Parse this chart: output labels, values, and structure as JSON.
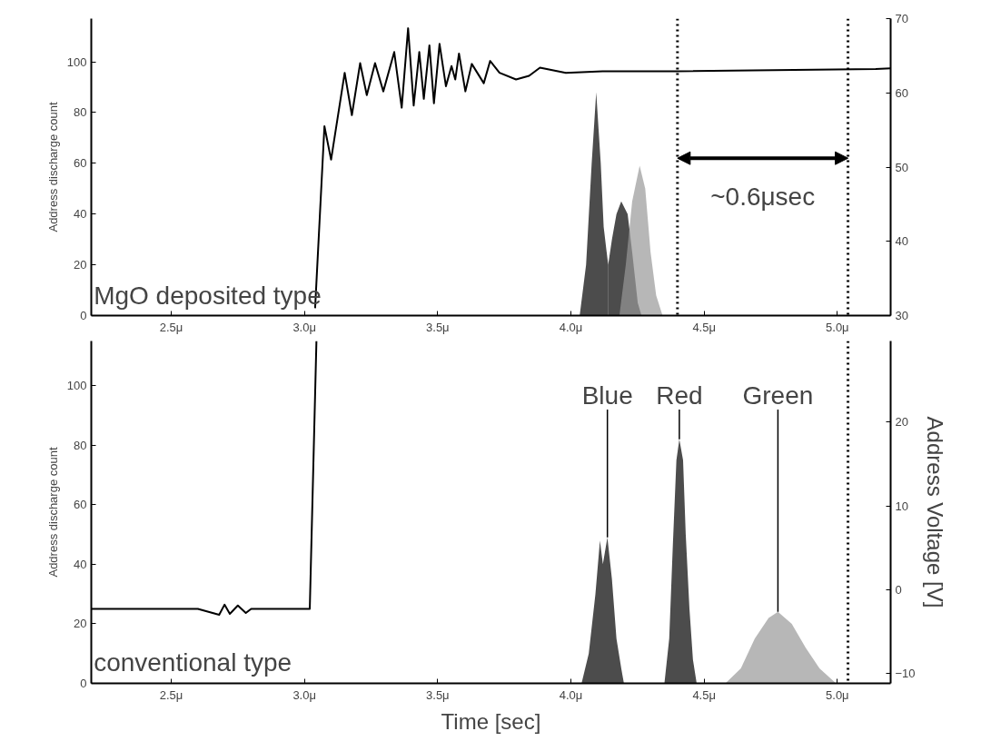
{
  "chart_data": [
    {
      "type": "area",
      "xlim": [
        2.2,
        5.2
      ],
      "xticks": [
        {
          "value": 2.5,
          "label": "2.5μ"
        },
        {
          "value": 3.0,
          "label": "3.0μ"
        },
        {
          "value": 3.5,
          "label": "3.5μ"
        },
        {
          "value": 4.0,
          "label": "4.0μ"
        },
        {
          "value": 4.5,
          "label": "4.5μ"
        },
        {
          "value": 5.0,
          "label": "5.0μ"
        }
      ],
      "ylim": [
        0,
        117
      ],
      "yticks": [
        0,
        20,
        40,
        60,
        80,
        100
      ],
      "y2lim": [
        30,
        70
      ],
      "y2ticks": [
        30,
        40,
        50,
        60,
        70
      ],
      "ylabel": "Address discharge count",
      "grid": false,
      "series": [
        {
          "type": "line",
          "axis": "y2",
          "color": "#000000",
          "x": [
            3.04,
            3.075,
            3.1,
            3.151,
            3.178,
            3.209,
            3.234,
            3.265,
            3.296,
            3.337,
            3.365,
            3.389,
            3.41,
            3.431,
            3.448,
            3.469,
            3.486,
            3.507,
            3.531,
            3.552,
            3.566,
            3.58,
            3.604,
            3.628,
            3.673,
            3.697,
            3.732,
            3.794,
            3.843,
            3.884,
            3.981,
            4.119,
            4.396,
            5.144,
            5.2
          ],
          "values": [
            31,
            55.5,
            51,
            62.7,
            57,
            64,
            59.7,
            64,
            60.2,
            65.5,
            58,
            68.7,
            58.3,
            65.5,
            59.2,
            66.4,
            58.6,
            66.6,
            60.9,
            63.6,
            61.8,
            65.3,
            60.2,
            63.9,
            61.3,
            64.3,
            62.7,
            61.8,
            62.3,
            63.4,
            62.7,
            62.9,
            62.9,
            63.2,
            63.3
          ]
        },
        {
          "color": "#000000",
          "x": [
            4.033,
            4.057,
            4.078,
            4.095,
            4.112,
            4.123,
            4.133,
            4.14
          ],
          "values": [
            0,
            20,
            60,
            88,
            60,
            35,
            26,
            20
          ]
        },
        {
          "color": "#000000",
          "x": [
            4.14,
            4.154,
            4.171,
            4.189,
            4.213,
            4.23,
            4.251,
            4.265
          ],
          "values": [
            20,
            30,
            40,
            45,
            40,
            25,
            5,
            0
          ]
        },
        {
          "color": "#999999",
          "x": [
            4.182,
            4.206,
            4.23,
            4.258,
            4.279,
            4.299,
            4.32,
            4.344
          ],
          "values": [
            0,
            20,
            45,
            59,
            50,
            25,
            8,
            0
          ]
        }
      ],
      "ref_lines": [
        {
          "axis": "x",
          "value": 4.4,
          "line_style": "dotted",
          "color": "#000000"
        },
        {
          "axis": "x",
          "value": 5.04,
          "line_style": "dotted",
          "color": "#000000"
        }
      ],
      "annotations": [
        "MgO deposited type",
        "~0.6μsec"
      ]
    },
    {
      "type": "area",
      "xlim": [
        2.2,
        5.2
      ],
      "xticks": [
        {
          "value": 2.5,
          "label": "2.5μ"
        },
        {
          "value": 3.0,
          "label": "3.0μ"
        },
        {
          "value": 3.5,
          "label": "3.5μ"
        },
        {
          "value": 4.0,
          "label": "4.0μ"
        },
        {
          "value": 4.5,
          "label": "4.5μ"
        },
        {
          "value": 5.0,
          "label": "5.0μ"
        }
      ],
      "ylim": [
        0,
        115
      ],
      "yticks": [
        0,
        20,
        40,
        60,
        80,
        100
      ],
      "y2lim": [
        -11.2,
        29.7
      ],
      "y2ticks": [
        -10,
        0,
        10,
        20
      ],
      "ylabel": "Address discharge count",
      "xlabel": "Time [sec]",
      "y2label": "Address Voltage [V]",
      "grid": false,
      "series": [
        {
          "type": "line",
          "axis": "y2",
          "color": "#000000",
          "x": [
            2.2,
            2.4,
            2.6,
            2.68,
            2.7,
            2.72,
            2.75,
            2.78,
            2.8,
            2.9,
            3.0,
            3.02,
            3.045
          ],
          "values": [
            -2.3,
            -2.3,
            -2.3,
            -3.0,
            -1.8,
            -2.9,
            -1.9,
            -2.8,
            -2.3,
            -2.3,
            -2.3,
            -2.3,
            29.7
          ]
        },
        {
          "name": "Blue",
          "color": "#000000",
          "x": [
            4.04,
            4.067,
            4.092,
            4.109,
            4.12,
            4.137,
            4.154,
            4.171,
            4.189,
            4.199
          ],
          "values": [
            0,
            10,
            30,
            48,
            40,
            49,
            35,
            15,
            5,
            0
          ]
        },
        {
          "name": "Red",
          "color": "#000000",
          "x": [
            4.351,
            4.369,
            4.382,
            4.396,
            4.407,
            4.421,
            4.431,
            4.445,
            4.458,
            4.472
          ],
          "values": [
            0,
            15,
            45,
            75,
            82,
            75,
            50,
            25,
            8,
            0
          ]
        },
        {
          "name": "Green",
          "color": "#999999",
          "x": [
            4.58,
            4.638,
            4.69,
            4.742,
            4.777,
            4.829,
            4.881,
            4.933,
            4.995
          ],
          "values": [
            0,
            5,
            15,
            22,
            24,
            20,
            12,
            5,
            0
          ]
        }
      ],
      "ref_lines": [
        {
          "axis": "x",
          "value": 5.04,
          "line_style": "dotted",
          "color": "#000000"
        }
      ],
      "annotations": [
        "conventional type"
      ]
    }
  ]
}
